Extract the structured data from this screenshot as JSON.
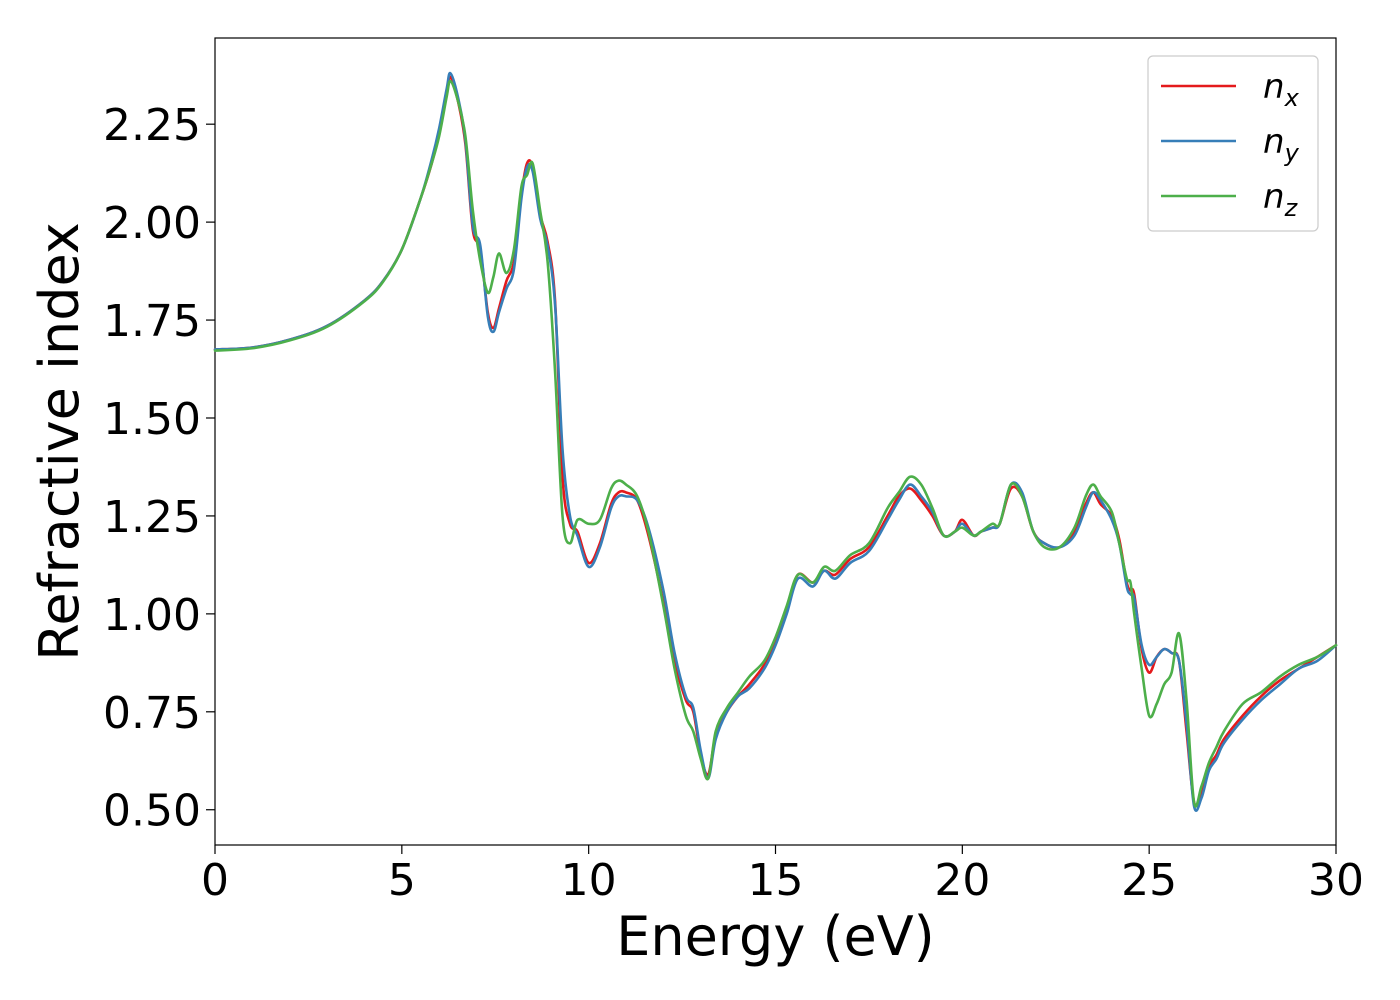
{
  "chart_data": {
    "type": "line",
    "xlabel": "Energy (eV)",
    "ylabel": "Refractive index",
    "xlim": [
      0,
      30
    ],
    "ylim": [
      0.41,
      2.47
    ],
    "xticks": [
      0,
      5,
      10,
      15,
      20,
      25,
      30
    ],
    "xtick_labels": [
      "0",
      "5",
      "10",
      "15",
      "20",
      "25",
      "30"
    ],
    "yticks": [
      0.5,
      0.75,
      1.0,
      1.25,
      1.5,
      1.75,
      2.0,
      2.25
    ],
    "ytick_labels": [
      "0.50",
      "0.75",
      "1.00",
      "1.25",
      "1.50",
      "1.75",
      "2.00",
      "2.25"
    ],
    "grid": false,
    "legend_position": "top-right",
    "series": [
      {
        "name": "n",
        "subscript": "x",
        "color": "#e41a1c",
        "x": [
          0,
          1,
          2,
          3,
          4,
          4.5,
          5,
          5.5,
          5.8,
          6.0,
          6.2,
          6.3,
          6.5,
          6.7,
          6.9,
          7.1,
          7.3,
          7.45,
          7.6,
          7.8,
          8.0,
          8.2,
          8.35,
          8.5,
          8.7,
          8.9,
          9.1,
          9.3,
          9.5,
          9.7,
          10.0,
          10.3,
          10.6,
          10.8,
          11.0,
          11.3,
          11.6,
          12.0,
          12.3,
          12.6,
          12.8,
          13.0,
          13.2,
          13.4,
          13.7,
          14.0,
          14.3,
          14.7,
          15.0,
          15.3,
          15.6,
          16.0,
          16.3,
          16.6,
          17.0,
          17.5,
          18.0,
          18.3,
          18.6,
          18.9,
          19.2,
          19.5,
          19.8,
          20.0,
          20.3,
          20.5,
          20.8,
          21.0,
          21.3,
          21.6,
          21.9,
          22.2,
          22.6,
          23.0,
          23.3,
          23.5,
          23.7,
          24.0,
          24.2,
          24.4,
          24.5,
          24.6,
          24.8,
          25.0,
          25.2,
          25.4,
          25.6,
          25.8,
          26.0,
          26.2,
          26.4,
          26.6,
          26.8,
          27.0,
          27.5,
          28.0,
          28.5,
          29.0,
          29.5,
          30.0
        ],
        "values": [
          1.675,
          1.68,
          1.7,
          1.735,
          1.8,
          1.85,
          1.93,
          2.06,
          2.15,
          2.23,
          2.33,
          2.37,
          2.31,
          2.2,
          1.98,
          1.93,
          1.77,
          1.73,
          1.78,
          1.85,
          1.9,
          2.07,
          2.15,
          2.14,
          2.02,
          1.95,
          1.8,
          1.35,
          1.23,
          1.21,
          1.13,
          1.18,
          1.28,
          1.31,
          1.31,
          1.29,
          1.2,
          1.03,
          0.88,
          0.78,
          0.75,
          0.64,
          0.59,
          0.69,
          0.75,
          0.79,
          0.82,
          0.87,
          0.93,
          1.01,
          1.1,
          1.08,
          1.11,
          1.1,
          1.14,
          1.17,
          1.25,
          1.3,
          1.32,
          1.29,
          1.25,
          1.2,
          1.21,
          1.24,
          1.2,
          1.21,
          1.22,
          1.23,
          1.32,
          1.3,
          1.21,
          1.18,
          1.17,
          1.21,
          1.28,
          1.31,
          1.28,
          1.25,
          1.19,
          1.08,
          1.06,
          1.05,
          0.91,
          0.85,
          0.89,
          0.91,
          0.9,
          0.88,
          0.7,
          0.52,
          0.54,
          0.61,
          0.64,
          0.68,
          0.74,
          0.79,
          0.83,
          0.86,
          0.89,
          0.92
        ]
      },
      {
        "name": "n",
        "subscript": "y",
        "color": "#377eb8",
        "x": [
          0,
          1,
          2,
          3,
          4,
          4.5,
          5,
          5.5,
          5.8,
          6.0,
          6.2,
          6.3,
          6.5,
          6.7,
          6.9,
          7.1,
          7.3,
          7.45,
          7.6,
          7.8,
          8.0,
          8.2,
          8.35,
          8.5,
          8.7,
          8.9,
          9.1,
          9.3,
          9.5,
          9.7,
          10.0,
          10.3,
          10.6,
          10.8,
          11.0,
          11.3,
          11.6,
          12.0,
          12.3,
          12.6,
          12.8,
          13.0,
          13.2,
          13.4,
          13.7,
          14.0,
          14.3,
          14.7,
          15.0,
          15.3,
          15.6,
          16.0,
          16.3,
          16.6,
          17.0,
          17.5,
          18.0,
          18.3,
          18.6,
          18.9,
          19.2,
          19.5,
          19.8,
          20.0,
          20.3,
          20.5,
          20.8,
          21.0,
          21.3,
          21.6,
          21.9,
          22.2,
          22.6,
          23.0,
          23.3,
          23.5,
          23.7,
          24.0,
          24.2,
          24.4,
          24.5,
          24.6,
          24.8,
          25.0,
          25.2,
          25.4,
          25.6,
          25.8,
          26.0,
          26.2,
          26.4,
          26.6,
          26.8,
          27.0,
          27.5,
          28.0,
          28.5,
          29.0,
          29.5,
          30.0
        ],
        "values": [
          1.675,
          1.68,
          1.7,
          1.735,
          1.8,
          1.85,
          1.93,
          2.06,
          2.16,
          2.24,
          2.34,
          2.38,
          2.32,
          2.21,
          1.99,
          1.94,
          1.76,
          1.72,
          1.77,
          1.83,
          1.88,
          2.06,
          2.14,
          2.13,
          2.01,
          1.94,
          1.79,
          1.42,
          1.25,
          1.2,
          1.12,
          1.17,
          1.27,
          1.3,
          1.3,
          1.29,
          1.22,
          1.06,
          0.9,
          0.79,
          0.76,
          0.65,
          0.58,
          0.68,
          0.75,
          0.79,
          0.81,
          0.86,
          0.92,
          1.0,
          1.09,
          1.07,
          1.11,
          1.09,
          1.13,
          1.16,
          1.24,
          1.29,
          1.33,
          1.3,
          1.26,
          1.2,
          1.21,
          1.23,
          1.2,
          1.21,
          1.22,
          1.23,
          1.33,
          1.31,
          1.21,
          1.18,
          1.17,
          1.2,
          1.27,
          1.31,
          1.29,
          1.24,
          1.18,
          1.07,
          1.05,
          1.04,
          0.92,
          0.87,
          0.89,
          0.91,
          0.9,
          0.88,
          0.72,
          0.51,
          0.53,
          0.6,
          0.63,
          0.67,
          0.73,
          0.78,
          0.82,
          0.86,
          0.88,
          0.92
        ]
      },
      {
        "name": "n",
        "subscript": "z",
        "color": "#4daf4a",
        "x": [
          0,
          1,
          2,
          3,
          4,
          4.5,
          5,
          5.5,
          5.8,
          6.0,
          6.2,
          6.3,
          6.5,
          6.7,
          6.9,
          7.1,
          7.3,
          7.45,
          7.6,
          7.8,
          8.0,
          8.2,
          8.35,
          8.5,
          8.7,
          8.9,
          9.1,
          9.3,
          9.5,
          9.7,
          10.0,
          10.3,
          10.6,
          10.8,
          11.0,
          11.3,
          11.6,
          12.0,
          12.3,
          12.6,
          12.8,
          13.0,
          13.2,
          13.4,
          13.7,
          14.0,
          14.3,
          14.7,
          15.0,
          15.3,
          15.6,
          16.0,
          16.3,
          16.6,
          17.0,
          17.5,
          18.0,
          18.3,
          18.6,
          18.9,
          19.2,
          19.5,
          19.8,
          20.0,
          20.3,
          20.5,
          20.8,
          21.0,
          21.3,
          21.6,
          21.9,
          22.2,
          22.6,
          23.0,
          23.3,
          23.5,
          23.7,
          24.0,
          24.2,
          24.4,
          24.5,
          24.6,
          24.8,
          25.0,
          25.2,
          25.4,
          25.6,
          25.8,
          26.0,
          26.2,
          26.4,
          26.6,
          26.8,
          27.0,
          27.5,
          28.0,
          28.5,
          29.0,
          29.5,
          30.0
        ],
        "values": [
          1.672,
          1.678,
          1.698,
          1.733,
          1.798,
          1.848,
          1.93,
          2.06,
          2.15,
          2.22,
          2.32,
          2.36,
          2.31,
          2.22,
          2.03,
          1.9,
          1.82,
          1.86,
          1.92,
          1.87,
          1.93,
          2.09,
          2.12,
          2.15,
          2.03,
          1.9,
          1.62,
          1.25,
          1.18,
          1.24,
          1.23,
          1.24,
          1.32,
          1.34,
          1.33,
          1.3,
          1.21,
          1.02,
          0.86,
          0.74,
          0.7,
          0.63,
          0.58,
          0.7,
          0.76,
          0.8,
          0.84,
          0.88,
          0.94,
          1.02,
          1.1,
          1.08,
          1.12,
          1.11,
          1.15,
          1.18,
          1.27,
          1.31,
          1.35,
          1.33,
          1.27,
          1.2,
          1.21,
          1.22,
          1.2,
          1.21,
          1.23,
          1.23,
          1.33,
          1.3,
          1.21,
          1.17,
          1.17,
          1.22,
          1.3,
          1.33,
          1.3,
          1.26,
          1.18,
          1.09,
          1.08,
          1.0,
          0.86,
          0.74,
          0.77,
          0.82,
          0.85,
          0.95,
          0.78,
          0.52,
          0.56,
          0.62,
          0.66,
          0.7,
          0.77,
          0.8,
          0.84,
          0.87,
          0.89,
          0.92
        ]
      }
    ]
  }
}
